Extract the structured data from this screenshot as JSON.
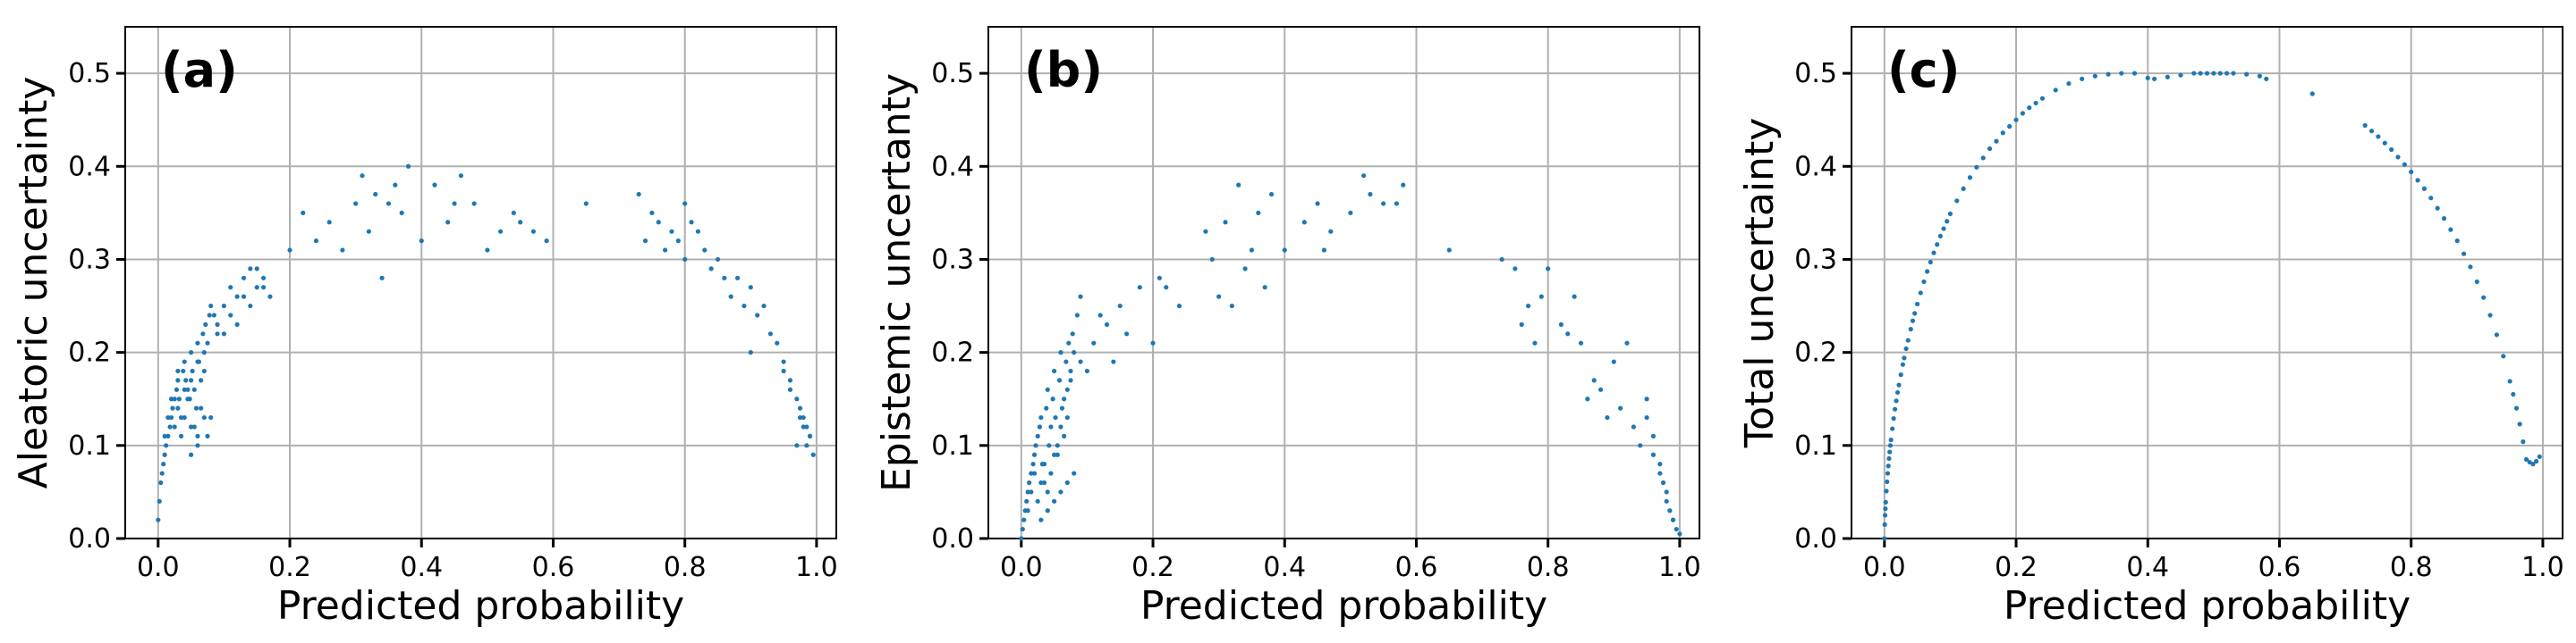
{
  "chart_data": [
    {
      "type": "scatter",
      "panel_label": "(a)",
      "xlabel": "Predicted probability",
      "ylabel": "Aleatoric uncertainty",
      "xlim": [
        -0.05,
        1.03
      ],
      "ylim": [
        0.0,
        0.55
      ],
      "xticks": [
        "0.0",
        "0.2",
        "0.4",
        "0.6",
        "0.8",
        "1.0"
      ],
      "yticks": [
        "0.0",
        "0.1",
        "0.2",
        "0.3",
        "0.4",
        "0.5"
      ],
      "grid": true,
      "marker_color": "#1f77b4",
      "series": [
        {
          "x": [
            0.0,
            0.002,
            0.004,
            0.006,
            0.008,
            0.01,
            0.012,
            0.015,
            0.018,
            0.02,
            0.022,
            0.025,
            0.028,
            0.03,
            0.032,
            0.035,
            0.038,
            0.04,
            0.042,
            0.045,
            0.048,
            0.05,
            0.052,
            0.055,
            0.058,
            0.06,
            0.062,
            0.065,
            0.068,
            0.07,
            0.072,
            0.075,
            0.078,
            0.08,
            0.085,
            0.09,
            0.01,
            0.015,
            0.02,
            0.025,
            0.03,
            0.035,
            0.04,
            0.045,
            0.05,
            0.055,
            0.06,
            0.065,
            0.07,
            0.075,
            0.03,
            0.04,
            0.05,
            0.06,
            0.07,
            0.08,
            0.05,
            0.06,
            0.09,
            0.1,
            0.11,
            0.12,
            0.13,
            0.14,
            0.15,
            0.16,
            0.1,
            0.11,
            0.12,
            0.13,
            0.14,
            0.15,
            0.16,
            0.17,
            0.2,
            0.22,
            0.24,
            0.26,
            0.28,
            0.3,
            0.31,
            0.32,
            0.33,
            0.34,
            0.35,
            0.36,
            0.37,
            0.38,
            0.4,
            0.42,
            0.44,
            0.45,
            0.46,
            0.48,
            0.5,
            0.52,
            0.54,
            0.55,
            0.57,
            0.59,
            0.65,
            0.73,
            0.74,
            0.75,
            0.76,
            0.77,
            0.78,
            0.79,
            0.8,
            0.8,
            0.81,
            0.82,
            0.83,
            0.84,
            0.85,
            0.86,
            0.87,
            0.88,
            0.89,
            0.9,
            0.9,
            0.91,
            0.92,
            0.93,
            0.94,
            0.95,
            0.96,
            0.97,
            0.975,
            0.98,
            0.985,
            0.99,
            0.995,
            0.97,
            0.96,
            0.95,
            0.98,
            0.99,
            0.975,
            0.985
          ],
          "y": [
            0.02,
            0.04,
            0.06,
            0.07,
            0.08,
            0.09,
            0.1,
            0.11,
            0.12,
            0.13,
            0.14,
            0.15,
            0.16,
            0.17,
            0.15,
            0.13,
            0.18,
            0.19,
            0.17,
            0.16,
            0.15,
            0.2,
            0.18,
            0.16,
            0.14,
            0.21,
            0.19,
            0.17,
            0.22,
            0.2,
            0.23,
            0.21,
            0.24,
            0.25,
            0.24,
            0.22,
            0.11,
            0.13,
            0.15,
            0.12,
            0.14,
            0.11,
            0.13,
            0.15,
            0.17,
            0.12,
            0.1,
            0.14,
            0.13,
            0.11,
            0.18,
            0.16,
            0.09,
            0.19,
            0.18,
            0.13,
            0.12,
            0.11,
            0.23,
            0.25,
            0.27,
            0.26,
            0.28,
            0.25,
            0.29,
            0.27,
            0.22,
            0.24,
            0.23,
            0.26,
            0.29,
            0.27,
            0.28,
            0.26,
            0.31,
            0.35,
            0.32,
            0.34,
            0.31,
            0.36,
            0.39,
            0.33,
            0.37,
            0.28,
            0.36,
            0.38,
            0.35,
            0.4,
            0.32,
            0.38,
            0.34,
            0.36,
            0.39,
            0.36,
            0.31,
            0.33,
            0.35,
            0.34,
            0.33,
            0.32,
            0.36,
            0.37,
            0.32,
            0.35,
            0.34,
            0.31,
            0.33,
            0.32,
            0.36,
            0.3,
            0.34,
            0.33,
            0.31,
            0.29,
            0.3,
            0.28,
            0.26,
            0.28,
            0.25,
            0.27,
            0.2,
            0.24,
            0.25,
            0.22,
            0.21,
            0.18,
            0.17,
            0.15,
            0.14,
            0.13,
            0.12,
            0.11,
            0.09,
            0.1,
            0.16,
            0.19,
            0.12,
            0.11,
            0.13,
            0.1
          ]
        }
      ]
    },
    {
      "type": "scatter",
      "panel_label": "(b)",
      "xlabel": "Predicted probability",
      "ylabel": "Epistemic uncertanty",
      "xlim": [
        -0.05,
        1.03
      ],
      "ylim": [
        0.0,
        0.55
      ],
      "xticks": [
        "0.0",
        "0.2",
        "0.4",
        "0.6",
        "0.8",
        "1.0"
      ],
      "yticks": [
        "0.0",
        "0.1",
        "0.2",
        "0.3",
        "0.4",
        "0.5"
      ],
      "grid": true,
      "marker_color": "#1f77b4",
      "series": [
        {
          "x": [
            0.0,
            0.002,
            0.004,
            0.006,
            0.008,
            0.01,
            0.012,
            0.015,
            0.018,
            0.02,
            0.022,
            0.025,
            0.028,
            0.03,
            0.032,
            0.035,
            0.038,
            0.04,
            0.042,
            0.045,
            0.048,
            0.05,
            0.052,
            0.055,
            0.058,
            0.06,
            0.062,
            0.065,
            0.068,
            0.07,
            0.072,
            0.075,
            0.078,
            0.08,
            0.085,
            0.09,
            0.01,
            0.015,
            0.02,
            0.025,
            0.03,
            0.035,
            0.04,
            0.045,
            0.05,
            0.055,
            0.06,
            0.065,
            0.07,
            0.075,
            0.03,
            0.04,
            0.05,
            0.06,
            0.07,
            0.08,
            0.09,
            0.1,
            0.11,
            0.12,
            0.13,
            0.14,
            0.15,
            0.16,
            0.18,
            0.2,
            0.21,
            0.22,
            0.24,
            0.28,
            0.29,
            0.3,
            0.31,
            0.32,
            0.33,
            0.34,
            0.35,
            0.36,
            0.37,
            0.38,
            0.4,
            0.43,
            0.45,
            0.46,
            0.47,
            0.5,
            0.52,
            0.53,
            0.55,
            0.57,
            0.58,
            0.65,
            0.73,
            0.75,
            0.76,
            0.77,
            0.78,
            0.79,
            0.8,
            0.82,
            0.83,
            0.84,
            0.85,
            0.86,
            0.87,
            0.88,
            0.89,
            0.9,
            0.91,
            0.92,
            0.93,
            0.94,
            0.95,
            0.96,
            0.97,
            0.975,
            0.98,
            0.985,
            0.99,
            0.995,
            1.0,
            0.96,
            0.97,
            0.98,
            0.95,
            0.99
          ],
          "y": [
            0.0,
            0.01,
            0.02,
            0.03,
            0.04,
            0.05,
            0.06,
            0.07,
            0.08,
            0.09,
            0.1,
            0.11,
            0.12,
            0.13,
            0.08,
            0.06,
            0.14,
            0.16,
            0.1,
            0.12,
            0.15,
            0.18,
            0.13,
            0.09,
            0.17,
            0.2,
            0.14,
            0.11,
            0.19,
            0.16,
            0.21,
            0.18,
            0.22,
            0.2,
            0.24,
            0.19,
            0.03,
            0.05,
            0.07,
            0.04,
            0.06,
            0.08,
            0.05,
            0.07,
            0.09,
            0.1,
            0.12,
            0.15,
            0.13,
            0.17,
            0.02,
            0.03,
            0.04,
            0.05,
            0.06,
            0.07,
            0.26,
            0.18,
            0.21,
            0.24,
            0.23,
            0.19,
            0.25,
            0.22,
            0.27,
            0.21,
            0.28,
            0.27,
            0.25,
            0.33,
            0.3,
            0.26,
            0.34,
            0.25,
            0.38,
            0.29,
            0.31,
            0.35,
            0.27,
            0.37,
            0.31,
            0.34,
            0.36,
            0.31,
            0.33,
            0.35,
            0.39,
            0.37,
            0.36,
            0.36,
            0.38,
            0.31,
            0.3,
            0.29,
            0.23,
            0.25,
            0.21,
            0.26,
            0.29,
            0.23,
            0.22,
            0.26,
            0.21,
            0.15,
            0.17,
            0.16,
            0.13,
            0.19,
            0.14,
            0.21,
            0.12,
            0.1,
            0.13,
            0.11,
            0.08,
            0.06,
            0.05,
            0.03,
            0.02,
            0.01,
            0.005,
            0.09,
            0.07,
            0.04,
            0.15,
            0.02
          ]
        }
      ]
    },
    {
      "type": "scatter",
      "panel_label": "(c)",
      "xlabel": "Predicted probability",
      "ylabel": "Total uncertainty",
      "xlim": [
        -0.05,
        1.03
      ],
      "ylim": [
        0.0,
        0.55
      ],
      "xticks": [
        "0.0",
        "0.2",
        "0.4",
        "0.6",
        "0.8",
        "1.0"
      ],
      "yticks": [
        "0.0",
        "0.1",
        "0.2",
        "0.3",
        "0.4",
        "0.5"
      ],
      "grid": true,
      "marker_color": "#1f77b4",
      "series": [
        {
          "x": [
            0.0,
            0.0005,
            0.001,
            0.0015,
            0.002,
            0.003,
            0.004,
            0.005,
            0.006,
            0.007,
            0.008,
            0.009,
            0.01,
            0.012,
            0.014,
            0.016,
            0.018,
            0.02,
            0.022,
            0.025,
            0.028,
            0.03,
            0.033,
            0.036,
            0.04,
            0.043,
            0.046,
            0.05,
            0.055,
            0.06,
            0.065,
            0.07,
            0.075,
            0.08,
            0.085,
            0.09,
            0.095,
            0.1,
            0.11,
            0.12,
            0.13,
            0.14,
            0.15,
            0.16,
            0.17,
            0.18,
            0.19,
            0.2,
            0.21,
            0.22,
            0.23,
            0.24,
            0.26,
            0.28,
            0.3,
            0.32,
            0.34,
            0.36,
            0.38,
            0.4,
            0.41,
            0.43,
            0.45,
            0.47,
            0.48,
            0.49,
            0.5,
            0.51,
            0.52,
            0.53,
            0.55,
            0.57,
            0.58,
            0.65,
            0.73,
            0.74,
            0.75,
            0.76,
            0.77,
            0.78,
            0.79,
            0.8,
            0.81,
            0.82,
            0.83,
            0.84,
            0.85,
            0.86,
            0.87,
            0.88,
            0.89,
            0.9,
            0.91,
            0.92,
            0.93,
            0.94,
            0.95,
            0.955,
            0.96,
            0.965,
            0.97,
            0.975,
            0.98,
            0.985,
            0.99,
            0.995
          ],
          "y": [
            0.0,
            0.015,
            0.025,
            0.032,
            0.039,
            0.051,
            0.061,
            0.07,
            0.078,
            0.086,
            0.093,
            0.1,
            0.106,
            0.118,
            0.129,
            0.139,
            0.148,
            0.157,
            0.165,
            0.176,
            0.187,
            0.194,
            0.204,
            0.213,
            0.225,
            0.234,
            0.242,
            0.252,
            0.264,
            0.276,
            0.287,
            0.297,
            0.307,
            0.316,
            0.325,
            0.333,
            0.341,
            0.349,
            0.363,
            0.376,
            0.388,
            0.399,
            0.409,
            0.419,
            0.427,
            0.436,
            0.443,
            0.45,
            0.457,
            0.463,
            0.468,
            0.473,
            0.482,
            0.489,
            0.494,
            0.497,
            0.499,
            0.5,
            0.5,
            0.495,
            0.494,
            0.496,
            0.498,
            0.5,
            0.5,
            0.5,
            0.5,
            0.5,
            0.5,
            0.5,
            0.499,
            0.497,
            0.494,
            0.478,
            0.444,
            0.438,
            0.432,
            0.425,
            0.418,
            0.41,
            0.402,
            0.394,
            0.385,
            0.376,
            0.366,
            0.355,
            0.344,
            0.332,
            0.32,
            0.306,
            0.292,
            0.276,
            0.259,
            0.24,
            0.219,
            0.196,
            0.169,
            0.155,
            0.14,
            0.123,
            0.104,
            0.085,
            0.082,
            0.08,
            0.083,
            0.088
          ]
        }
      ]
    }
  ]
}
